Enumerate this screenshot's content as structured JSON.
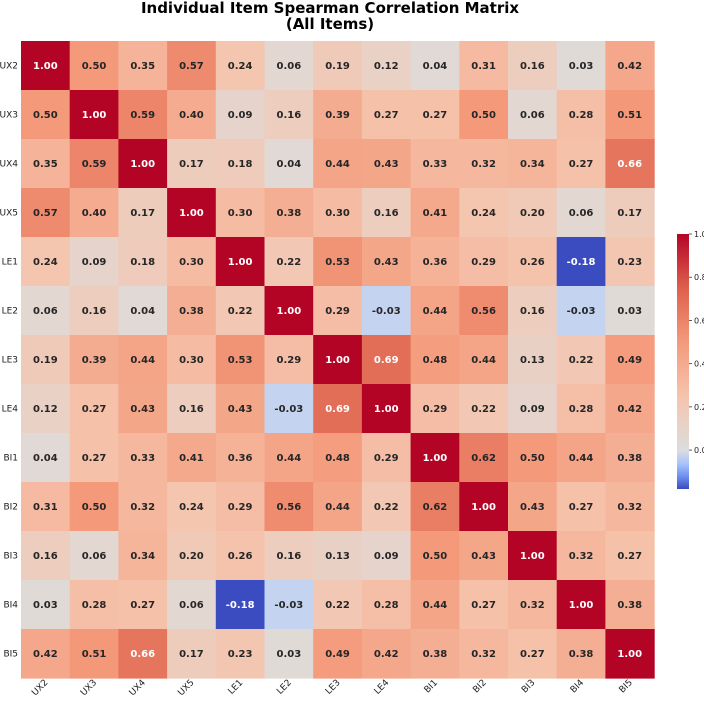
{
  "chart_data": {
    "type": "heatmap",
    "title": "Individual Item Spearman Correlation Matrix",
    "subtitle": "(All Items)",
    "row_labels": [
      "UX2",
      "UX3",
      "UX4",
      "UX5",
      "LE1",
      "LE2",
      "LE3",
      "LE4",
      "BI1",
      "BI2",
      "BI3",
      "BI4",
      "BI5"
    ],
    "col_labels": [
      "UX2",
      "UX3",
      "UX4",
      "UX5",
      "LE1",
      "LE2",
      "LE3",
      "LE4",
      "BI1",
      "BI2",
      "BI3",
      "BI4",
      "BI5"
    ],
    "values": [
      [
        1.0,
        0.5,
        0.35,
        0.57,
        0.24,
        0.06,
        0.19,
        0.12,
        0.04,
        0.31,
        0.16,
        0.03,
        0.42
      ],
      [
        0.5,
        1.0,
        0.59,
        0.4,
        0.09,
        0.16,
        0.39,
        0.27,
        0.27,
        0.5,
        0.06,
        0.28,
        0.51
      ],
      [
        0.35,
        0.59,
        1.0,
        0.17,
        0.18,
        0.04,
        0.44,
        0.43,
        0.33,
        0.32,
        0.34,
        0.27,
        0.66
      ],
      [
        0.57,
        0.4,
        0.17,
        1.0,
        0.3,
        0.38,
        0.3,
        0.16,
        0.41,
        0.24,
        0.2,
        0.06,
        0.17
      ],
      [
        0.24,
        0.09,
        0.18,
        0.3,
        1.0,
        0.22,
        0.53,
        0.43,
        0.36,
        0.29,
        0.26,
        -0.18,
        0.23
      ],
      [
        0.06,
        0.16,
        0.04,
        0.38,
        0.22,
        1.0,
        0.29,
        -0.03,
        0.44,
        0.56,
        0.16,
        -0.03,
        0.03
      ],
      [
        0.19,
        0.39,
        0.44,
        0.3,
        0.53,
        0.29,
        1.0,
        0.69,
        0.48,
        0.44,
        0.13,
        0.22,
        0.49
      ],
      [
        0.12,
        0.27,
        0.43,
        0.16,
        0.43,
        -0.03,
        0.69,
        1.0,
        0.29,
        0.22,
        0.09,
        0.28,
        0.42
      ],
      [
        0.04,
        0.27,
        0.33,
        0.41,
        0.36,
        0.44,
        0.48,
        0.29,
        1.0,
        0.62,
        0.5,
        0.44,
        0.38
      ],
      [
        0.31,
        0.5,
        0.32,
        0.24,
        0.29,
        0.56,
        0.44,
        0.22,
        0.62,
        1.0,
        0.43,
        0.27,
        0.32
      ],
      [
        0.16,
        0.06,
        0.34,
        0.2,
        0.26,
        0.16,
        0.13,
        0.09,
        0.5,
        0.43,
        1.0,
        0.32,
        0.27
      ],
      [
        0.03,
        0.28,
        0.27,
        0.06,
        -0.18,
        -0.03,
        0.22,
        0.28,
        0.44,
        0.27,
        0.32,
        1.0,
        0.38
      ],
      [
        0.42,
        0.51,
        0.66,
        0.17,
        0.23,
        0.03,
        0.49,
        0.42,
        0.38,
        0.32,
        0.27,
        0.38,
        1.0
      ]
    ],
    "colormap": "coolwarm",
    "vmin": -0.18,
    "vmax": 1.0,
    "colorbar_ticks": [
      "1.0",
      "0.8",
      "0.6",
      "0.4",
      "0.2",
      "0.0"
    ],
    "colorbar_tick_values": [
      1.0,
      0.8,
      0.6,
      0.4,
      0.2,
      0.0
    ],
    "legend_placement": "right",
    "grid": false
  }
}
